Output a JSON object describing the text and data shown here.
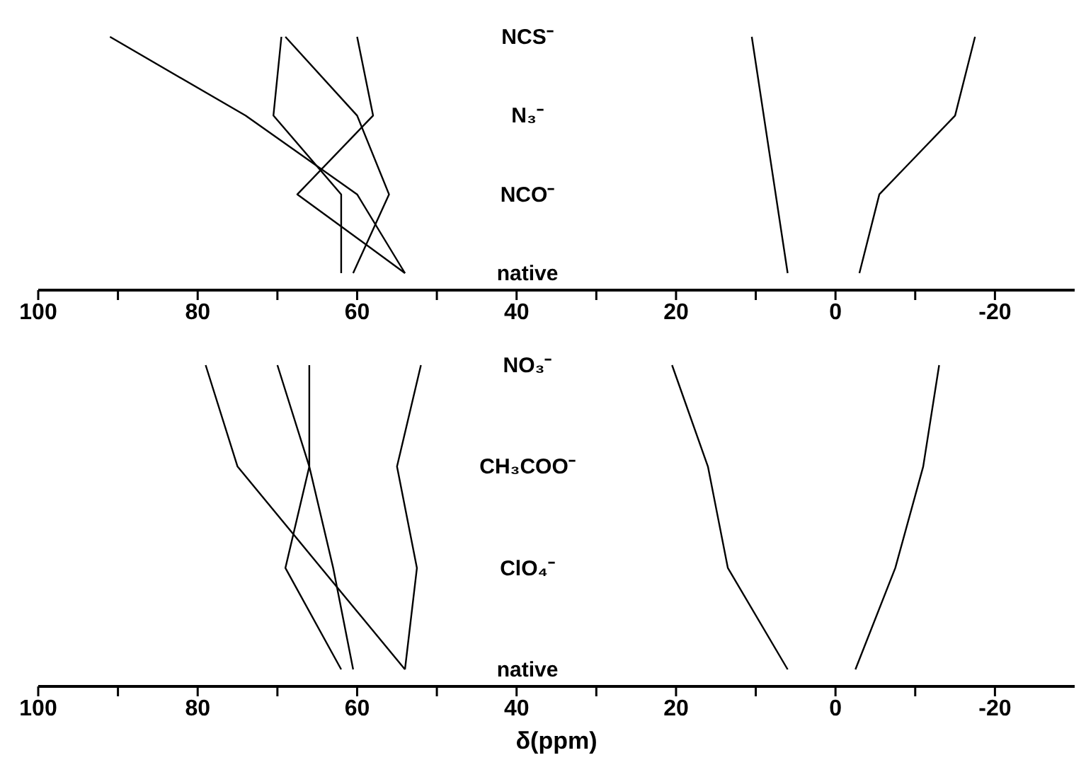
{
  "chart_data": [
    {
      "type": "line",
      "orientation": "horizontal",
      "categories": [
        "NCS⁻",
        "N₃⁻",
        "NCO⁻",
        "native"
      ],
      "series": [
        {
          "color": "#000000",
          "values": [
            91,
            74,
            60,
            54
          ]
        },
        {
          "color": "#000000",
          "values": [
            69.5,
            70.5,
            62,
            62
          ]
        },
        {
          "color": "#000000",
          "values": [
            69,
            60,
            56,
            60.5
          ]
        },
        {
          "color": "#000000",
          "values": [
            60,
            58,
            67.5,
            54
          ]
        },
        {
          "color": "#000000",
          "values": [
            10.5,
            null,
            null,
            6
          ]
        },
        {
          "color": "#000000",
          "values": [
            -17.5,
            -15,
            -5.5,
            -3
          ]
        }
      ],
      "xlim": [
        100,
        -30
      ],
      "xticks": [
        100,
        {
          "value": 90,
          "label": null
        },
        80,
        {
          "value": 70,
          "label": null
        },
        60,
        {
          "value": 50,
          "label": null
        },
        40,
        {
          "value": 30,
          "label": null
        },
        20,
        {
          "value": 10,
          "label": null
        },
        0,
        {
          "value": -10,
          "label": null
        },
        -20
      ],
      "grid": false,
      "legend": false
    },
    {
      "type": "line",
      "orientation": "horizontal",
      "categories": [
        "NO₃⁻",
        "CH₃COO⁻",
        "ClO₄⁻",
        "native"
      ],
      "xlabel": "δ(ppm)",
      "series": [
        {
          "color": "#000000",
          "values": [
            79,
            75,
            64.5,
            54
          ]
        },
        {
          "color": "#000000",
          "values": [
            70,
            66,
            69,
            62
          ]
        },
        {
          "color": "#000000",
          "values": [
            66,
            66,
            63,
            60.5
          ]
        },
        {
          "color": "#000000",
          "values": [
            52,
            55,
            52.5,
            54
          ]
        },
        {
          "color": "#000000",
          "values": [
            20.5,
            16,
            13.5,
            6
          ]
        },
        {
          "color": "#000000",
          "values": [
            -13,
            -11,
            -7.5,
            -2.5
          ]
        }
      ],
      "xlim": [
        100,
        -30
      ],
      "xticks": [
        100,
        {
          "value": 90,
          "label": null
        },
        80,
        {
          "value": 70,
          "label": null
        },
        60,
        {
          "value": 50,
          "label": null
        },
        40,
        {
          "value": 30,
          "label": null
        },
        20,
        {
          "value": 10,
          "label": null
        },
        0,
        {
          "value": -10,
          "label": null
        },
        -20
      ],
      "grid": false,
      "legend": false
    }
  ]
}
